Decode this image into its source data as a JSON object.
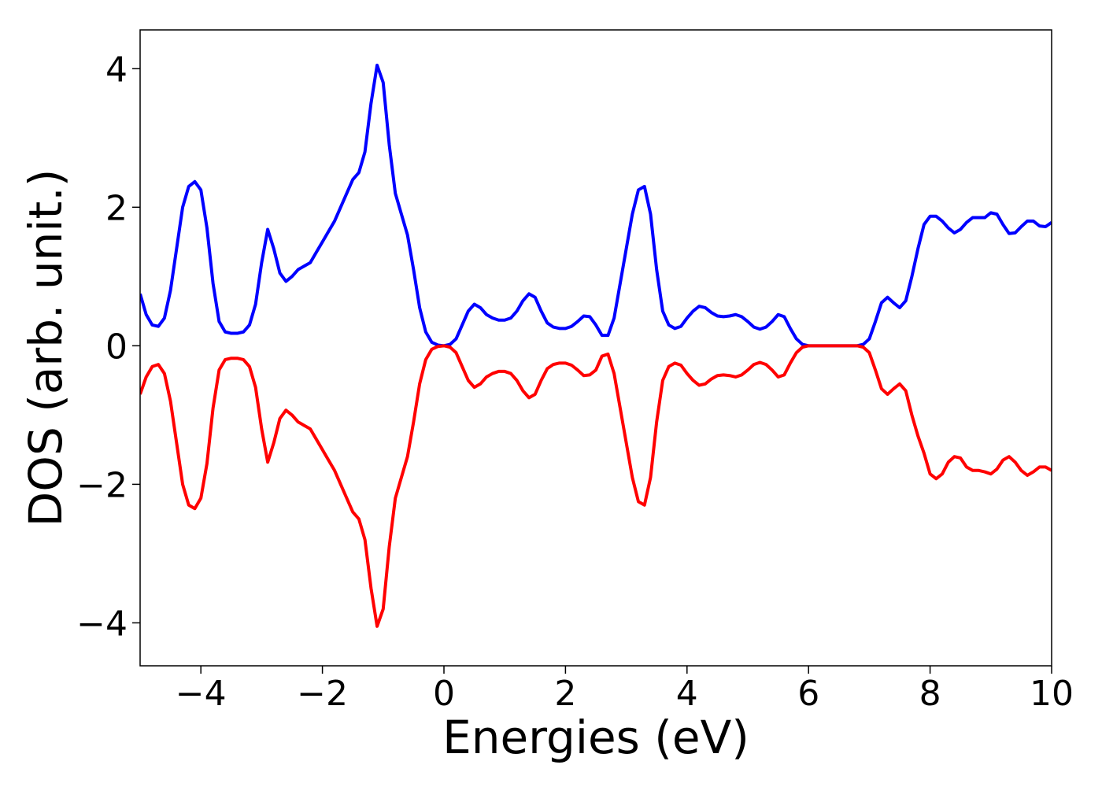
{
  "chart_data": {
    "type": "line",
    "xlabel": "Energies (eV)",
    "ylabel": "DOS (arb. unit.)",
    "x": [
      -5,
      -4.9,
      -4.8,
      -4.7,
      -4.6,
      -4.5,
      -4.4,
      -4.3,
      -4.2,
      -4.1,
      -4,
      -3.9,
      -3.8,
      -3.7,
      -3.6,
      -3.5,
      -3.4,
      -3.3,
      -3.2,
      -3.1,
      -3,
      -2.9,
      -2.8,
      -2.7,
      -2.6,
      -2.5,
      -2.4,
      -2.3,
      -2.2,
      -2.1,
      -2,
      -1.9,
      -1.8,
      -1.7,
      -1.6,
      -1.5,
      -1.4,
      -1.3,
      -1.2,
      -1.1,
      -1,
      -0.9,
      -0.8,
      -0.7,
      -0.6,
      -0.5,
      -0.4,
      -0.3,
      -0.2,
      -0.1,
      0,
      0.1,
      0.2,
      0.3,
      0.4,
      0.5,
      0.6,
      0.7,
      0.8,
      0.9,
      1,
      1.1,
      1.2,
      1.3,
      1.4,
      1.5,
      1.6,
      1.7,
      1.8,
      1.9,
      2,
      2.1,
      2.2,
      2.3,
      2.4,
      2.5,
      2.6,
      2.7,
      2.8,
      2.9,
      3,
      3.1,
      3.2,
      3.3,
      3.4,
      3.5,
      3.6,
      3.7,
      3.8,
      3.9,
      4,
      4.1,
      4.2,
      4.3,
      4.4,
      4.5,
      4.6,
      4.7,
      4.8,
      4.9,
      5,
      5.1,
      5.2,
      5.3,
      5.4,
      5.5,
      5.6,
      5.7,
      5.8,
      5.9,
      6,
      6.1,
      6.2,
      6.3,
      6.4,
      6.5,
      6.6,
      6.7,
      6.8,
      6.9,
      7,
      7.1,
      7.2,
      7.3,
      7.4,
      7.5,
      7.6,
      7.7,
      7.8,
      7.9,
      8,
      8.1,
      8.2,
      8.3,
      8.4,
      8.5,
      8.6,
      8.7,
      8.8,
      8.9,
      9,
      9.1,
      9.2,
      9.3,
      9.4,
      9.5,
      9.6,
      9.7,
      9.8,
      9.9,
      10
    ],
    "series": [
      {
        "color": "#0000ff",
        "values": [
          0.75,
          0.45,
          0.3,
          0.28,
          0.4,
          0.8,
          1.4,
          2.0,
          2.3,
          2.37,
          2.25,
          1.7,
          0.9,
          0.35,
          0.2,
          0.18,
          0.18,
          0.2,
          0.3,
          0.6,
          1.2,
          1.68,
          1.4,
          1.05,
          0.93,
          1.0,
          1.1,
          1.15,
          1.2,
          1.35,
          1.5,
          1.65,
          1.8,
          2.0,
          2.2,
          2.4,
          2.5,
          2.8,
          3.5,
          4.05,
          3.8,
          2.9,
          2.2,
          1.9,
          1.6,
          1.1,
          0.55,
          0.2,
          0.05,
          0.01,
          0,
          0.02,
          0.1,
          0.3,
          0.5,
          0.6,
          0.55,
          0.45,
          0.4,
          0.37,
          0.37,
          0.4,
          0.5,
          0.65,
          0.75,
          0.7,
          0.5,
          0.33,
          0.27,
          0.25,
          0.25,
          0.28,
          0.35,
          0.43,
          0.42,
          0.3,
          0.15,
          0.15,
          0.4,
          0.9,
          1.4,
          1.9,
          2.25,
          2.3,
          1.9,
          1.1,
          0.5,
          0.3,
          0.25,
          0.28,
          0.4,
          0.5,
          0.57,
          0.55,
          0.48,
          0.43,
          0.42,
          0.43,
          0.45,
          0.42,
          0.35,
          0.27,
          0.24,
          0.27,
          0.35,
          0.45,
          0.42,
          0.25,
          0.1,
          0.02,
          0,
          0,
          0,
          0,
          0,
          0,
          0,
          0,
          0,
          0.02,
          0.1,
          0.35,
          0.62,
          0.7,
          0.62,
          0.55,
          0.65,
          1.0,
          1.4,
          1.75,
          1.87,
          1.87,
          1.8,
          1.7,
          1.63,
          1.68,
          1.78,
          1.85,
          1.85,
          1.85,
          1.92,
          1.9,
          1.75,
          1.62,
          1.63,
          1.72,
          1.8,
          1.8,
          1.73,
          1.72,
          1.78
        ]
      },
      {
        "color": "#ff0000",
        "values": [
          -0.7,
          -0.45,
          -0.3,
          -0.27,
          -0.4,
          -0.8,
          -1.4,
          -2.0,
          -2.3,
          -2.35,
          -2.2,
          -1.7,
          -0.9,
          -0.35,
          -0.2,
          -0.18,
          -0.18,
          -0.2,
          -0.3,
          -0.6,
          -1.2,
          -1.68,
          -1.4,
          -1.05,
          -0.93,
          -1.0,
          -1.1,
          -1.15,
          -1.2,
          -1.35,
          -1.5,
          -1.65,
          -1.8,
          -2.0,
          -2.2,
          -2.4,
          -2.5,
          -2.8,
          -3.5,
          -4.05,
          -3.8,
          -2.9,
          -2.2,
          -1.9,
          -1.6,
          -1.1,
          -0.55,
          -0.2,
          -0.05,
          -0.01,
          0,
          -0.02,
          -0.1,
          -0.3,
          -0.5,
          -0.6,
          -0.55,
          -0.45,
          -0.4,
          -0.37,
          -0.37,
          -0.4,
          -0.5,
          -0.65,
          -0.75,
          -0.7,
          -0.5,
          -0.33,
          -0.27,
          -0.25,
          -0.25,
          -0.28,
          -0.35,
          -0.43,
          -0.42,
          -0.35,
          -0.15,
          -0.12,
          -0.4,
          -0.9,
          -1.4,
          -1.9,
          -2.25,
          -2.3,
          -1.9,
          -1.1,
          -0.5,
          -0.3,
          -0.25,
          -0.28,
          -0.4,
          -0.5,
          -0.57,
          -0.55,
          -0.48,
          -0.43,
          -0.42,
          -0.43,
          -0.45,
          -0.42,
          -0.35,
          -0.27,
          -0.24,
          -0.27,
          -0.35,
          -0.45,
          -0.42,
          -0.25,
          -0.1,
          -0.02,
          0,
          0,
          0,
          0,
          0,
          0,
          0,
          0,
          0,
          -0.02,
          -0.1,
          -0.35,
          -0.62,
          -0.7,
          -0.62,
          -0.55,
          -0.65,
          -1.0,
          -1.3,
          -1.55,
          -1.85,
          -1.92,
          -1.85,
          -1.68,
          -1.6,
          -1.62,
          -1.75,
          -1.8,
          -1.8,
          -1.82,
          -1.85,
          -1.78,
          -1.65,
          -1.6,
          -1.68,
          -1.8,
          -1.87,
          -1.82,
          -1.75,
          -1.75,
          -1.8
        ]
      }
    ],
    "xlim": [
      -5,
      10
    ],
    "xticks": [
      {
        "value": -4,
        "label": "−4"
      },
      {
        "value": -2,
        "label": "−2"
      },
      0,
      2,
      4,
      6,
      8,
      10
    ],
    "ylim": [
      -4.62,
      4.56
    ],
    "yticks": [
      {
        "value": -4,
        "label": "−4"
      },
      {
        "value": -2,
        "label": "−2"
      },
      0,
      2,
      4
    ],
    "grid": false
  }
}
